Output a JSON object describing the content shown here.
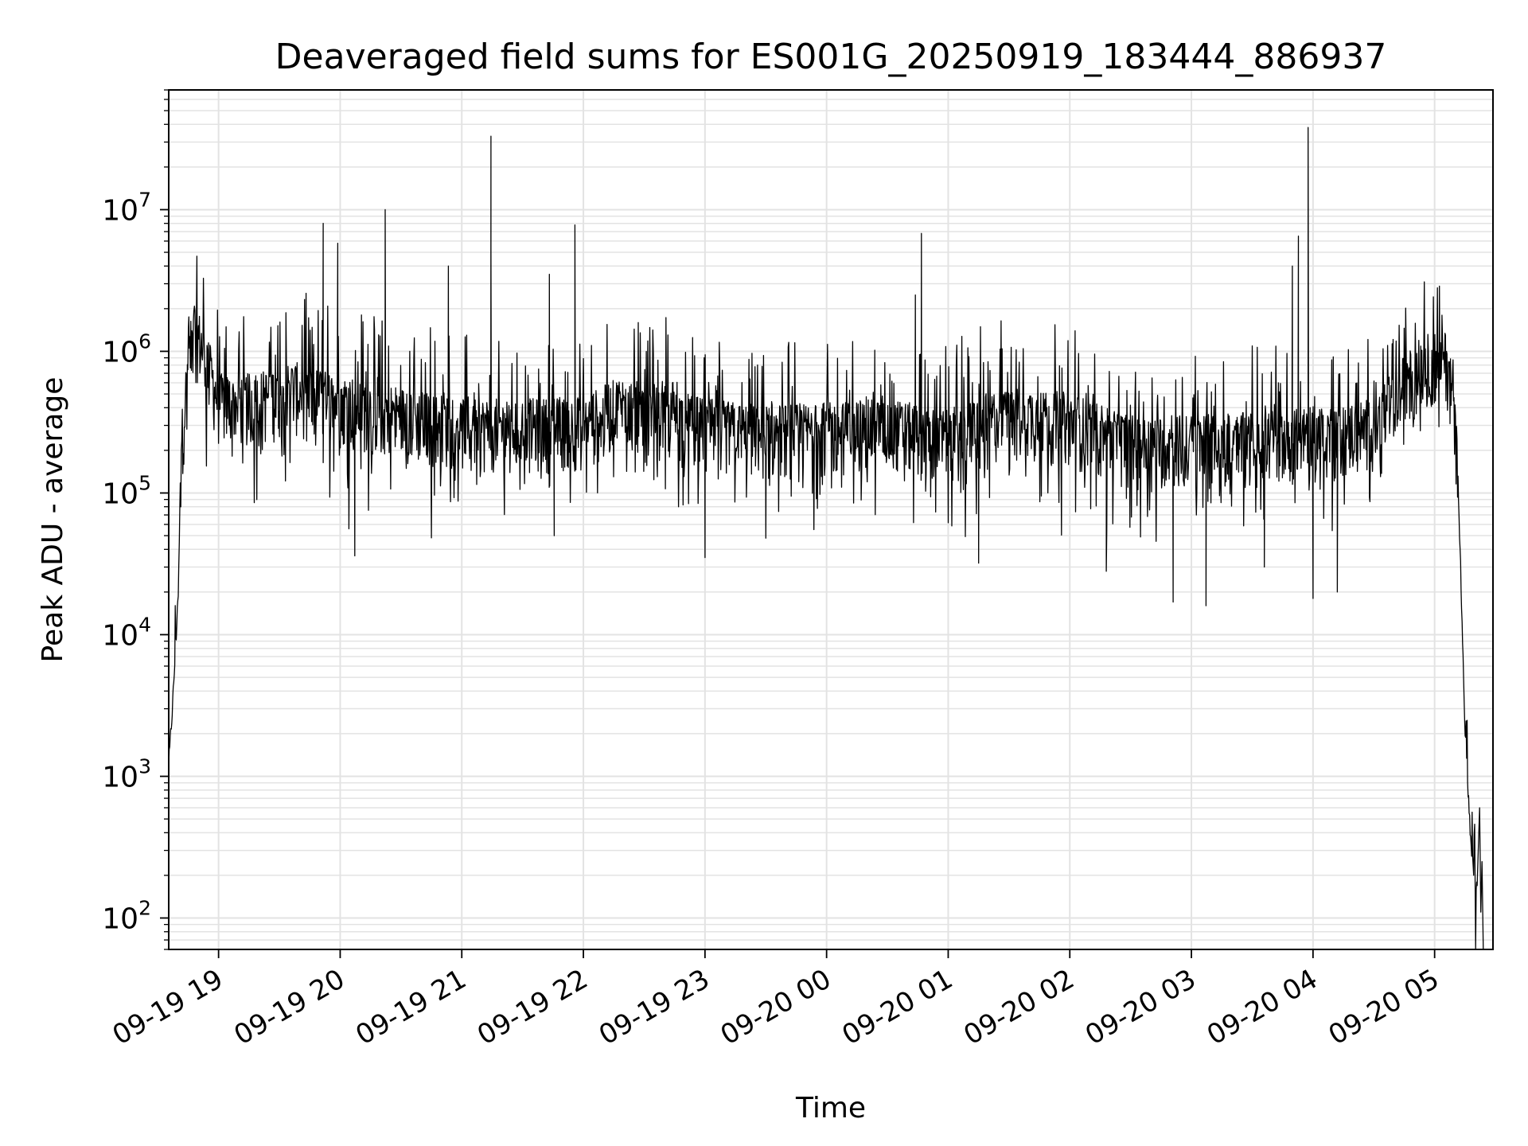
{
  "chart_data": {
    "type": "line",
    "title": "Deaveraged field sums for ES001G_20250919_183444_886937",
    "xlabel": "Time",
    "ylabel": "Peak ADU - average",
    "yscale": "log",
    "ylim": [
      60,
      70000000
    ],
    "xlim_hours": [
      -0.41,
      10.48
    ],
    "grid": true,
    "line_color": "#000000",
    "grid_color": "#e3e3e3",
    "x_ticks": [
      {
        "hour": 0,
        "label": "09-19 19"
      },
      {
        "hour": 1,
        "label": "09-19 20"
      },
      {
        "hour": 2,
        "label": "09-19 21"
      },
      {
        "hour": 3,
        "label": "09-19 22"
      },
      {
        "hour": 4,
        "label": "09-19 23"
      },
      {
        "hour": 5,
        "label": "09-20 00"
      },
      {
        "hour": 6,
        "label": "09-20 01"
      },
      {
        "hour": 7,
        "label": "09-20 02"
      },
      {
        "hour": 8,
        "label": "09-20 03"
      },
      {
        "hour": 9,
        "label": "09-20 04"
      },
      {
        "hour": 10,
        "label": "09-20 05"
      }
    ],
    "y_ticks": [
      {
        "value": 100,
        "base": "10",
        "exp": "2"
      },
      {
        "value": 1000,
        "base": "10",
        "exp": "3"
      },
      {
        "value": 10000,
        "base": "10",
        "exp": "4"
      },
      {
        "value": 100000,
        "base": "10",
        "exp": "5"
      },
      {
        "value": 1000000,
        "base": "10",
        "exp": "6"
      },
      {
        "value": 10000000,
        "base": "10",
        "exp": "7"
      }
    ],
    "series": [
      {
        "name": "deaveraged field sum",
        "baseline": [
          [
            -0.41,
            1200
          ],
          [
            -0.38,
            3000
          ],
          [
            -0.33,
            20000
          ],
          [
            -0.31,
            200000
          ],
          [
            -0.25,
            800000
          ],
          [
            -0.2,
            1500000
          ],
          [
            -0.12,
            1000000
          ],
          [
            0.0,
            450000
          ],
          [
            0.3,
            450000
          ],
          [
            0.6,
            550000
          ],
          [
            1.0,
            450000
          ],
          [
            1.4,
            380000
          ],
          [
            1.8,
            320000
          ],
          [
            2.2,
            300000
          ],
          [
            2.6,
            300000
          ],
          [
            3.0,
            310000
          ],
          [
            3.3,
            430000
          ],
          [
            3.6,
            380000
          ],
          [
            4.0,
            300000
          ],
          [
            4.5,
            270000
          ],
          [
            5.0,
            280000
          ],
          [
            5.5,
            300000
          ],
          [
            6.0,
            250000
          ],
          [
            6.5,
            380000
          ],
          [
            7.0,
            330000
          ],
          [
            7.5,
            230000
          ],
          [
            8.0,
            230000
          ],
          [
            8.5,
            240000
          ],
          [
            9.0,
            260000
          ],
          [
            9.5,
            300000
          ],
          [
            9.75,
            600000
          ],
          [
            9.9,
            850000
          ],
          [
            10.1,
            900000
          ],
          [
            10.18,
            350000
          ],
          [
            10.25,
            2000
          ],
          [
            10.3,
            300
          ],
          [
            10.35,
            150
          ]
        ],
        "spikes": [
          [
            0.86,
            8000000
          ],
          [
            0.98,
            5800000
          ],
          [
            1.37,
            10000000
          ],
          [
            1.89,
            4000000
          ],
          [
            2.24,
            33000000
          ],
          [
            2.24,
            5000000
          ],
          [
            2.72,
            3500000
          ],
          [
            2.93,
            7800000
          ],
          [
            5.73,
            2500000
          ],
          [
            5.78,
            6800000
          ],
          [
            8.83,
            4000000
          ],
          [
            8.88,
            6500000
          ],
          [
            8.96,
            38000000
          ]
        ],
        "dips": [
          [
            1.12,
            36000
          ],
          [
            2.76,
            50000
          ],
          [
            4.0,
            35000
          ],
          [
            4.5,
            48000
          ],
          [
            6.25,
            32000
          ],
          [
            7.3,
            28000
          ],
          [
            7.85,
            17000
          ],
          [
            8.12,
            16000
          ],
          [
            8.6,
            30000
          ],
          [
            9.0,
            18000
          ],
          [
            9.2,
            20000
          ]
        ]
      }
    ]
  }
}
